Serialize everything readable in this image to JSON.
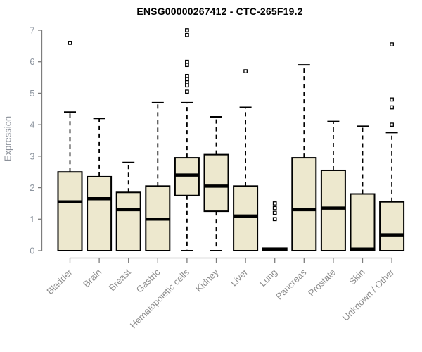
{
  "page": {
    "background": "#ffffff"
  },
  "chart_data": {
    "type": "boxplot",
    "title": "ENSG00000267412 - CTC-265F19.2",
    "ylabel": "Expression",
    "xlabel": "",
    "ylim": [
      0,
      7
    ],
    "yticks": [
      0,
      1,
      2,
      3,
      4,
      5,
      6,
      7
    ],
    "grid": false,
    "legend": false,
    "categories": [
      "Bladder",
      "Brain",
      "Breast",
      "Gastric",
      "Hematopoietic cells",
      "Kidney",
      "Liver",
      "Lung",
      "Pancreas",
      "Prostate",
      "Skin",
      "Unknown / Other"
    ],
    "series": [
      {
        "name": "Bladder",
        "whisker_low": 0,
        "q1": 0,
        "median": 1.55,
        "q3": 2.5,
        "whisker_high": 4.4,
        "outliers": [
          6.6
        ]
      },
      {
        "name": "Brain",
        "whisker_low": 0,
        "q1": 0,
        "median": 1.65,
        "q3": 2.35,
        "whisker_high": 4.2,
        "outliers": []
      },
      {
        "name": "Breast",
        "whisker_low": 0,
        "q1": 0,
        "median": 1.3,
        "q3": 1.85,
        "whisker_high": 2.8,
        "outliers": []
      },
      {
        "name": "Gastric",
        "whisker_low": 0,
        "q1": 0,
        "median": 1.0,
        "q3": 2.05,
        "whisker_high": 4.7,
        "outliers": []
      },
      {
        "name": "Hematopoietic cells",
        "whisker_low": 0,
        "q1": 1.75,
        "median": 2.4,
        "q3": 2.95,
        "whisker_high": 4.7,
        "outliers": [
          7.0,
          6.85,
          6.0,
          5.9,
          5.55,
          5.45,
          5.35,
          5.25,
          5.05
        ]
      },
      {
        "name": "Kidney",
        "whisker_low": 0,
        "q1": 1.25,
        "median": 2.05,
        "q3": 3.05,
        "whisker_high": 4.25,
        "outliers": []
      },
      {
        "name": "Liver",
        "whisker_low": 0,
        "q1": 0,
        "median": 1.1,
        "q3": 2.05,
        "whisker_high": 4.55,
        "outliers": [
          5.7
        ]
      },
      {
        "name": "Lung",
        "whisker_low": 0,
        "q1": 0,
        "median": 0.04,
        "q3": 0.08,
        "whisker_high": 0.08,
        "outliers": [
          1.5,
          1.35,
          1.2,
          1.0
        ]
      },
      {
        "name": "Pancreas",
        "whisker_low": 0,
        "q1": 0,
        "median": 1.3,
        "q3": 2.95,
        "whisker_high": 5.9,
        "outliers": []
      },
      {
        "name": "Prostate",
        "whisker_low": 0,
        "q1": 0,
        "median": 1.35,
        "q3": 2.55,
        "whisker_high": 4.1,
        "outliers": []
      },
      {
        "name": "Skin",
        "whisker_low": 0,
        "q1": 0,
        "median": 0.05,
        "q3": 1.8,
        "whisker_high": 3.95,
        "outliers": []
      },
      {
        "name": "Unknown / Other",
        "whisker_low": 0,
        "q1": 0,
        "median": 0.5,
        "q3": 1.55,
        "whisker_high": 3.75,
        "outliers": [
          6.55,
          4.8,
          4.55,
          4.0
        ]
      }
    ],
    "colors": {
      "box_fill": "#ede8ce",
      "box_border": "#000000",
      "median": "#000000",
      "whisker": "#000000",
      "outlier_stroke": "#000000",
      "outlier_fill": "#ffffff",
      "axis_line": "#7d7d7d",
      "y_tick_label": "#8e96a0",
      "x_tick_label": "#8c8c8c",
      "axis_title": "#8c919a",
      "title": "#000000",
      "background": "#ffffff"
    }
  }
}
